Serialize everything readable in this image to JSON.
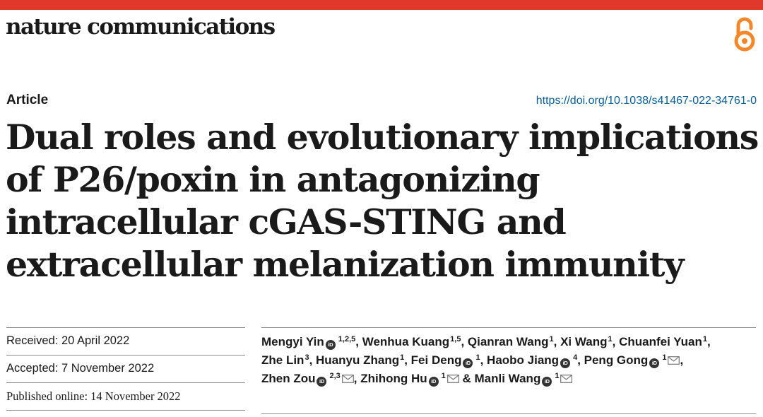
{
  "header": {
    "journal": "nature communications",
    "open_access_icon": "open-access-lock-icon",
    "accent_color": "#e1382c",
    "oa_color": "#f5872a"
  },
  "article": {
    "type": "Article",
    "doi": "https://doi.org/10.1038/s41467-022-34761-0",
    "title": "Dual roles and evolutionary implications of P26/poxin in antagonizing intracellular cGAS-STING and extracellular melanization immunity"
  },
  "dates": [
    {
      "text": "Received: 20 April 2022"
    },
    {
      "text": "Accepted: 7 November 2022"
    },
    {
      "text": "Published online: 14 November 2022"
    }
  ],
  "authors": [
    {
      "name": "Mengyi Yin",
      "aff": "1,2,5",
      "sep": ", "
    },
    {
      "name": "Wenhua Kuang",
      "aff": "1,5",
      "sep": ", "
    },
    {
      "name": "Qianran Wang",
      "aff": "1",
      "sep": ", "
    },
    {
      "name": "Xi Wang",
      "aff": "1",
      "sep": ", "
    },
    {
      "name": "Chuanfei Yuan",
      "aff": "1",
      "sep": ", "
    },
    {
      "name": "Zhe Lin",
      "aff": "3",
      "sep": ", "
    },
    {
      "name": "Huanyu Zhang",
      "aff": "1",
      "sep": ", "
    },
    {
      "name": "Fei Deng",
      "aff": "1",
      "sep": ", "
    },
    {
      "name": "Haobo Jiang",
      "aff": "4",
      "sep": ", "
    },
    {
      "name": "Peng Gong",
      "aff": "1",
      "sep": ","
    },
    {
      "name": "Zhen Zou",
      "aff": "2,3",
      "sep": ", "
    },
    {
      "name": "Zhihong Hu",
      "aff": "1",
      "sep": " & "
    },
    {
      "name": "Manli Wang",
      "aff": "1",
      "sep": ""
    }
  ]
}
